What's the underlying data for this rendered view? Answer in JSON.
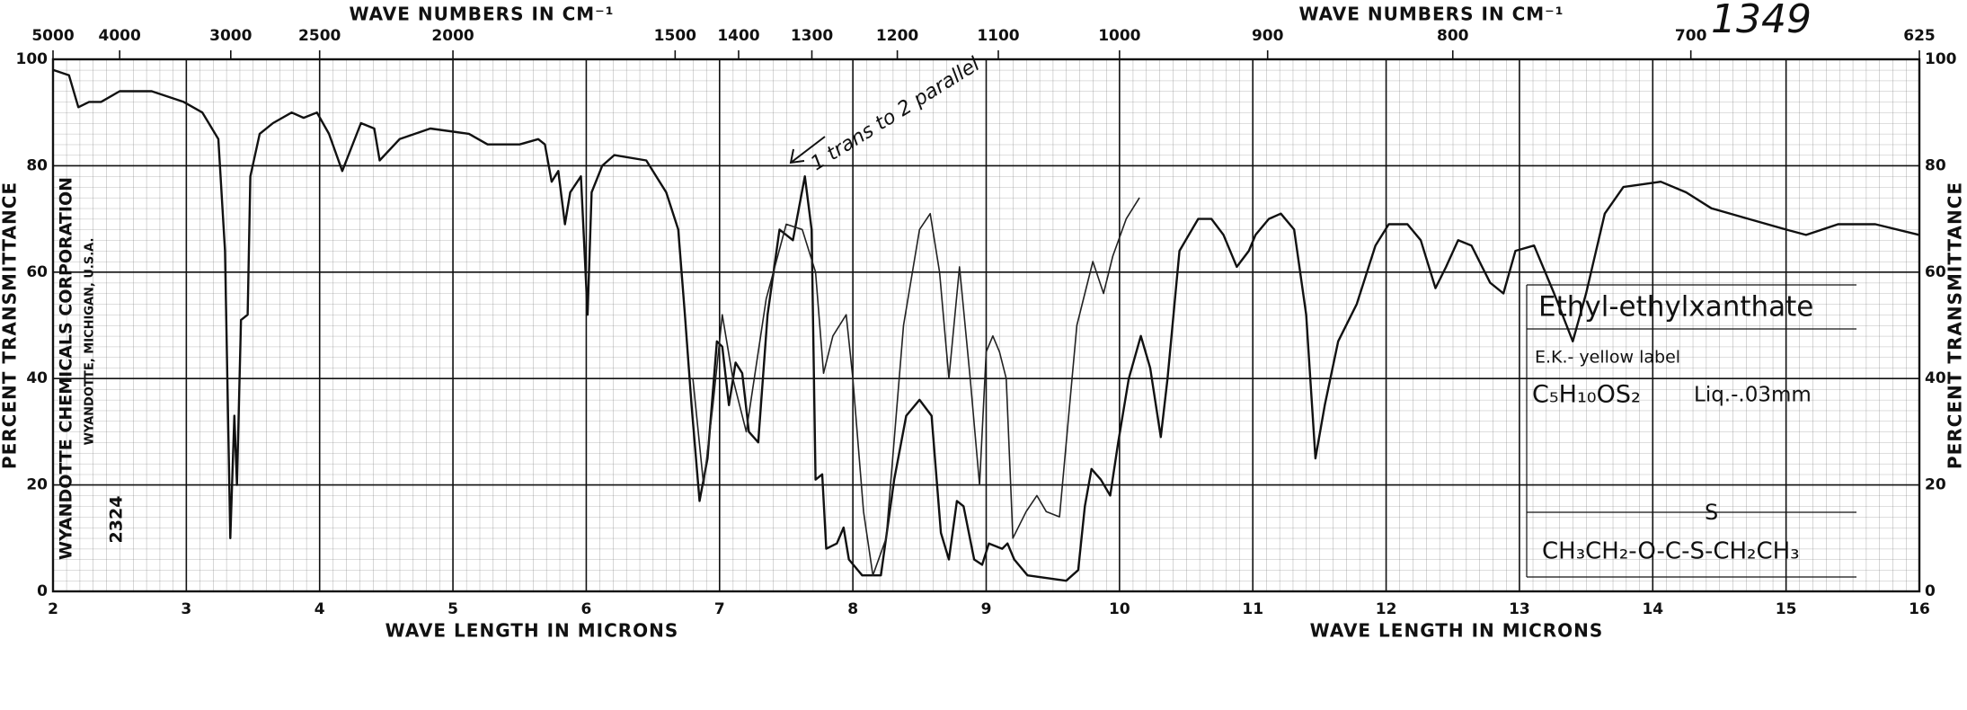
{
  "chart_data": {
    "type": "line",
    "top_titles": [
      "WAVE NUMBERS IN CM⁻¹",
      "WAVE NUMBERS IN CM⁻¹"
    ],
    "bottom_titles": [
      "WAVE LENGTH IN MICRONS",
      "WAVE LENGTH IN MICRONS"
    ],
    "ylabel": "PERCENT TRANSMITTANCE",
    "ylabel_right": "PERCENT TRANSMITTANCE",
    "chart_number": "1349",
    "company": "WYANDOTTE CHEMICALS CORPORATION",
    "company_location": "WYANDOTTE, MICHIGAN, U.S.A.",
    "chart_code": "2324",
    "annotations": {
      "compound": "Ethyl-ethylxanthate",
      "source": "E.K.- yellow label",
      "formula": "C₅H₁₀OS₂",
      "sample": "Liq.-.03mm",
      "sulfur": "S",
      "structure": "CH₃CH₂-O-C-S-CH₂CH₃",
      "note": "1 trans to 2 parallel"
    },
    "xlim": [
      2,
      16
    ],
    "xticks": [
      2,
      3,
      4,
      5,
      6,
      7,
      8,
      9,
      10,
      11,
      12,
      13,
      14,
      15,
      16
    ],
    "x2scale": "reciprocal",
    "x2ticks": [
      5000,
      4000,
      3000,
      2500,
      2000,
      1500,
      1400,
      1300,
      1200,
      1100,
      1000,
      900,
      800,
      700,
      625
    ],
    "ylim": [
      0,
      100
    ],
    "yticks": [
      0,
      20,
      40,
      60,
      80,
      100
    ],
    "grid": true,
    "series": [
      {
        "color": "#111111",
        "x": [
          2.0,
          2.12,
          2.19,
          2.27,
          2.36,
          2.5,
          2.74,
          2.98,
          3.12,
          3.24,
          3.29,
          3.33,
          3.36,
          3.38,
          3.41,
          3.46,
          3.48,
          3.55,
          3.65,
          3.79,
          3.88,
          3.98,
          4.07,
          4.17,
          4.31,
          4.41,
          4.45,
          4.6,
          4.83,
          5.12,
          5.26,
          5.5,
          5.64,
          5.69,
          5.74,
          5.79,
          5.84,
          5.88,
          5.96,
          6.01,
          6.04,
          6.12,
          6.21,
          6.45,
          6.6,
          6.69,
          6.74,
          6.79,
          6.85,
          6.91,
          6.98,
          7.02,
          7.07,
          7.12,
          7.17,
          7.22,
          7.29,
          7.36,
          7.45,
          7.55,
          7.64,
          7.69,
          7.72,
          7.77,
          7.8,
          7.88,
          7.93,
          7.97,
          8.07,
          8.21,
          8.31,
          8.4,
          8.5,
          8.59,
          8.66,
          8.72,
          8.78,
          8.83,
          8.91,
          8.97,
          9.02,
          9.12,
          9.16,
          9.21,
          9.31,
          9.6,
          9.69,
          9.74,
          9.79,
          9.86,
          9.93,
          9.99,
          10.07,
          10.16,
          10.23,
          10.31,
          10.36,
          10.45,
          10.59,
          10.69,
          10.78,
          10.88,
          10.97,
          11.02,
          11.12,
          11.21,
          11.31,
          11.4,
          11.47,
          11.54,
          11.64,
          11.78,
          11.92,
          12.02,
          12.16,
          12.26,
          12.37,
          12.45,
          12.54,
          12.64,
          12.78,
          12.88,
          12.97,
          13.11,
          13.26,
          13.4,
          13.5,
          13.64,
          13.78,
          14.06,
          14.25,
          14.44,
          14.72,
          15.0,
          15.15,
          15.39,
          15.67,
          16.0
        ],
        "values": [
          98,
          97,
          91,
          92,
          92,
          94,
          94,
          92,
          90,
          85,
          64,
          10,
          33,
          20,
          51,
          52,
          78,
          86,
          88,
          90,
          89,
          90,
          86,
          79,
          88,
          87,
          81,
          85,
          87,
          86,
          84,
          84,
          85,
          84,
          77,
          79,
          69,
          75,
          78,
          52,
          75,
          80,
          82,
          81,
          75,
          68,
          52,
          35,
          17,
          25,
          47,
          46,
          35,
          43,
          41,
          30,
          28,
          52,
          68,
          66,
          78,
          68,
          21,
          22,
          8,
          9,
          12,
          6,
          3,
          3,
          21,
          33,
          36,
          33,
          11,
          6,
          17,
          16,
          6,
          5,
          9,
          8,
          9,
          6,
          3,
          2,
          4,
          16,
          23,
          21,
          18,
          28,
          40,
          48,
          42,
          29,
          40,
          64,
          70,
          70,
          67,
          61,
          64,
          67,
          70,
          71,
          68,
          52,
          25,
          35,
          47,
          54,
          65,
          69,
          69,
          66,
          57,
          61,
          66,
          65,
          58,
          56,
          64,
          65,
          56,
          47,
          56,
          71,
          76,
          77,
          75,
          72,
          70,
          68,
          67,
          69,
          69,
          67
        ]
      },
      {
        "color": "#222222",
        "x": [
          6.8,
          6.88,
          6.95,
          7.02,
          7.1,
          7.2,
          7.35,
          7.5,
          7.62,
          7.72,
          7.78,
          7.85,
          7.95,
          8.0,
          8.08,
          8.15,
          8.25,
          8.38,
          8.5,
          8.58,
          8.65,
          8.72,
          8.8,
          8.88,
          8.95,
          9.0,
          9.05,
          9.1,
          9.15,
          9.2,
          9.3,
          9.38,
          9.45,
          9.55,
          9.68,
          9.8,
          9.88,
          9.95,
          10.05,
          10.15
        ],
        "values": [
          40,
          20,
          35,
          52,
          40,
          30,
          55,
          69,
          68,
          60,
          41,
          48,
          52,
          40,
          15,
          3,
          10,
          50,
          68,
          71,
          60,
          40,
          61,
          40,
          20,
          45,
          48,
          45,
          40,
          10,
          15,
          18,
          15,
          14,
          50,
          62,
          56,
          63,
          70,
          74
        ]
      }
    ]
  }
}
